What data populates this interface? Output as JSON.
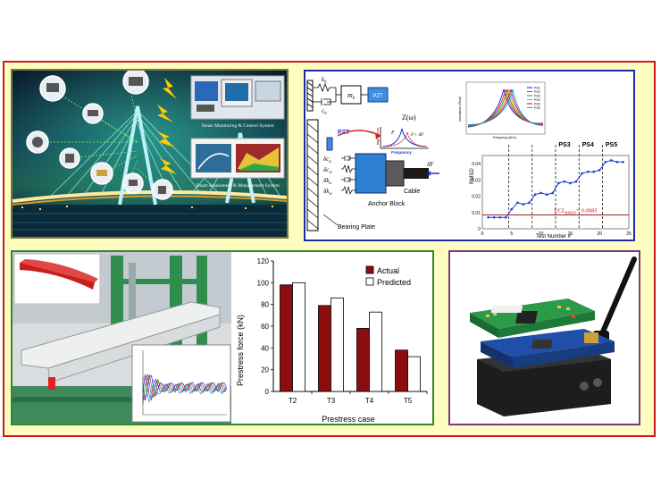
{
  "bridge_panel": {
    "monitoring_label": "Smart Monitoring & Control System",
    "assessment_label": "Smart Assessment & Management System"
  },
  "impedance_diagram": {
    "mass_label": "m",
    "mass_sub": "b",
    "pzt_top": "PZT",
    "pzt_side": "PZT",
    "k_top": "k",
    "k_top_sub": "b",
    "c_top": "c",
    "c_top_sub": "b",
    "z_label": "Z(ω)",
    "impedance_axis": "Imp.edance",
    "frequency_axis": "Frequency",
    "f_label": "F",
    "delta_f_label": "F+ δF",
    "damage_labels": [
      "δc",
      "δc",
      "δk",
      "δk"
    ],
    "damage_subs": [
      "a",
      "w",
      "a",
      "w"
    ],
    "delta_force": "δF",
    "cable_label": "Cable",
    "anchor_label": "Anchor Block",
    "bearing_label": "Bearing Plate"
  },
  "rmsd_chart": {
    "type": "line",
    "ylabel": "RMSD",
    "xlabel": "Test Number #",
    "x_ticks": [
      "0",
      "5",
      "10",
      "15",
      "20",
      "25"
    ],
    "y_ticks": [
      "0",
      "0.01",
      "0.02",
      "0.03",
      "0.04"
    ],
    "xlim": [
      0,
      25
    ],
    "ylim": [
      0,
      0.045
    ],
    "ucl_label": "UCL",
    "ucl_sub": "RMSD",
    "ucl_value_label": "= 0.0085",
    "ucl_value": 0.0085,
    "stage_labels": [
      "PS3",
      "PS4",
      "PS5"
    ],
    "stage_positions": [
      12.5,
      16.5,
      20.5
    ],
    "dividers": [
      4.5,
      8.5,
      12.5,
      16.5,
      20.5
    ],
    "x": [
      1,
      2,
      3,
      4,
      5,
      6,
      7,
      8,
      9,
      10,
      11,
      12,
      13,
      14,
      15,
      16,
      17,
      18,
      19,
      20,
      21,
      22,
      23,
      24
    ],
    "values": [
      0.007,
      0.007,
      0.007,
      0.007,
      0.012,
      0.016,
      0.015,
      0.016,
      0.021,
      0.022,
      0.021,
      0.022,
      0.028,
      0.029,
      0.028,
      0.029,
      0.034,
      0.035,
      0.035,
      0.036,
      0.041,
      0.042,
      0.041,
      0.041
    ],
    "color": "#1a3bd6"
  },
  "spectrum_chart": {
    "ylabel": "Impedance (Real)",
    "xlabel": "Frequency (kHz)",
    "legend": [
      "PS1",
      "PS2",
      "PS3",
      "PS4",
      "PS5",
      "PS6"
    ],
    "colors": [
      "#1a1aff",
      "#ff2020",
      "#00aa00",
      "#ff8800",
      "#aa00aa",
      "#00aaaa"
    ]
  },
  "prestress_chart": {
    "type": "bar",
    "title": "",
    "ylabel": "Prestress force (kN)",
    "xlabel": "Prestress case",
    "categories": [
      "T2",
      "T3",
      "T4",
      "T5"
    ],
    "ylim": [
      0,
      120
    ],
    "y_ticks": [
      "0",
      "20",
      "40",
      "60",
      "80",
      "100",
      "120"
    ],
    "series": [
      {
        "name": "Actual",
        "values": [
          98,
          79,
          58,
          38
        ],
        "color": "#8b0d0d"
      },
      {
        "name": "Predicted",
        "values": [
          100,
          86,
          73,
          32
        ],
        "color": "#ffffff"
      }
    ],
    "legend_position": "top-right"
  }
}
